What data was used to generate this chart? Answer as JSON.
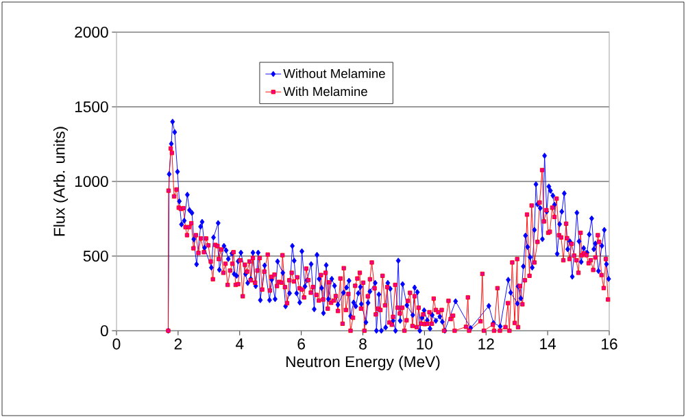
{
  "chart_data": {
    "type": "line",
    "xlabel": "Neutron Energy (MeV)",
    "ylabel": "Flux (Arb. units)",
    "xlim": [
      0,
      16
    ],
    "ylim": [
      0,
      2000
    ],
    "xticks": [
      0,
      2,
      4,
      6,
      8,
      10,
      12,
      14,
      16
    ],
    "yticks": [
      0,
      500,
      1000,
      1500,
      2000
    ],
    "grid": "y",
    "legend": "top",
    "line_style": "solid",
    "series": [
      {
        "name": "Without Melamine",
        "color": "#0000ff",
        "marker": "diamond",
        "x": [
          1.68,
          1.71,
          1.78,
          1.82,
          1.89,
          1.98,
          2.04,
          2.11,
          2.2,
          2.3,
          2.37,
          2.45,
          2.51,
          2.6,
          2.73,
          2.78,
          2.86,
          3.08,
          3.15,
          3.3,
          3.34,
          3.49,
          3.56,
          3.63,
          3.75,
          3.82,
          3.9,
          3.95,
          4.04,
          4.19,
          4.26,
          4.36,
          4.43,
          4.52,
          4.6,
          4.67,
          4.81,
          4.97,
          5.04,
          5.15,
          5.23,
          5.4,
          5.49,
          5.62,
          5.71,
          5.77,
          5.85,
          5.95,
          6.02,
          6.12,
          6.19,
          6.32,
          6.42,
          6.51,
          6.58,
          6.66,
          6.72,
          6.81,
          6.88,
          6.99,
          7.08,
          7.19,
          7.37,
          7.47,
          7.55,
          7.6,
          7.7,
          7.77,
          7.85,
          7.92,
          7.95,
          8.1,
          8.17,
          8.23,
          8.4,
          8.44,
          8.52,
          8.6,
          8.74,
          8.81,
          8.89,
          8.98,
          9.06,
          9.15,
          9.21,
          9.29,
          9.43,
          9.62,
          9.68,
          9.77,
          9.85,
          9.92,
          9.99,
          10.09,
          10.18,
          10.25,
          10.37,
          10.5,
          10.58,
          10.66,
          11.01,
          11.5,
          12.09,
          12.24,
          12.46,
          12.72,
          12.8,
          13.02,
          13.04,
          13.13,
          13.21,
          13.28,
          13.35,
          13.43,
          13.5,
          13.57,
          13.62,
          13.67,
          13.76,
          13.83,
          13.9,
          13.97,
          14.04,
          14.09,
          14.17,
          14.22,
          14.31,
          14.39,
          14.46,
          14.54,
          14.65,
          14.72,
          14.8,
          14.95,
          15.02,
          15.09,
          15.17,
          15.28,
          15.35,
          15.43,
          15.5,
          15.55,
          15.65,
          15.76,
          15.84,
          15.91,
          15.98
        ],
        "values": [
          0,
          1049,
          1252,
          1400,
          1330,
          1065,
          867,
          712,
          737,
          911,
          808,
          789,
          613,
          445,
          697,
          729,
          556,
          423,
          625,
          721,
          408,
          568,
          538,
          481,
          518,
          380,
          368,
          465,
          523,
          380,
          320,
          347,
          523,
          299,
          523,
          205,
          437,
          205,
          342,
          212,
          464,
          388,
          164,
          251,
          568,
          469,
          251,
          189,
          532,
          297,
          338,
          446,
          144,
          508,
          347,
          286,
          118,
          439,
          212,
          347,
          301,
          174,
          255,
          289,
          335,
          98,
          189,
          164,
          251,
          293,
          179,
          56,
          187,
          263,
          320,
          0,
          243,
          0,
          22,
          320,
          281,
          67,
          0,
          469,
          67,
          312,
          171,
          105,
          289,
          258,
          0,
          87,
          136,
          70,
          14,
          105,
          67,
          95,
          60,
          0,
          197,
          18,
          166,
          52,
          29,
          341,
          255,
          182,
          297,
          217,
          431,
          637,
          561,
          492,
          423,
          675,
          981,
          847,
          821,
          614,
          1172,
          798,
          966,
          938,
          905,
          844,
          515,
          714,
          798,
          920,
          546,
          599,
          362,
          790,
          599,
          461,
          553,
          523,
          645,
          752,
          546,
          584,
          400,
          569,
          675,
          446,
          347
        ]
      },
      {
        "name": "With Melamine",
        "color": "#ff0000",
        "marker": "square",
        "x": [
          1.68,
          1.69,
          1.76,
          1.8,
          1.87,
          1.95,
          2.02,
          2.09,
          2.17,
          2.24,
          2.29,
          2.35,
          2.43,
          2.5,
          2.58,
          2.66,
          2.74,
          2.84,
          2.91,
          2.98,
          3.06,
          3.13,
          3.21,
          3.28,
          3.32,
          3.4,
          3.47,
          3.54,
          3.61,
          3.69,
          3.76,
          3.8,
          3.87,
          3.95,
          4.02,
          4.1,
          4.17,
          4.24,
          4.32,
          4.36,
          4.43,
          4.5,
          4.58,
          4.65,
          4.73,
          4.8,
          4.91,
          4.98,
          5.04,
          5.13,
          5.21,
          5.28,
          5.36,
          5.39,
          5.47,
          5.54,
          5.61,
          5.69,
          5.76,
          5.87,
          5.94,
          6.02,
          6.09,
          6.16,
          6.23,
          6.31,
          6.38,
          6.49,
          6.57,
          6.64,
          6.71,
          6.79,
          6.86,
          6.9,
          6.97,
          7.05,
          7.12,
          7.19,
          7.27,
          7.34,
          7.38,
          7.45,
          7.53,
          7.6,
          7.68,
          7.75,
          7.82,
          7.9,
          7.94,
          8.01,
          8.05,
          8.16,
          8.23,
          8.29,
          8.38,
          8.42,
          8.49,
          8.57,
          8.64,
          8.72,
          8.79,
          8.86,
          8.94,
          8.98,
          9.05,
          9.13,
          9.2,
          9.28,
          9.35,
          9.42,
          9.46,
          9.53,
          9.61,
          9.68,
          9.75,
          9.81,
          9.89,
          9.96,
          10.01,
          10.09,
          10.16,
          10.24,
          10.3,
          10.37,
          10.45,
          10.56,
          10.64,
          10.78,
          10.85,
          10.93,
          10.98,
          11.35,
          11.41,
          11.45,
          11.82,
          11.88,
          11.93,
          12.22,
          12.26,
          12.37,
          12.45,
          12.63,
          12.71,
          12.76,
          12.85,
          12.93,
          13.01,
          13.04,
          13.1,
          13.18,
          13.26,
          13.33,
          13.41,
          13.48,
          13.57,
          13.67,
          13.74,
          13.82,
          13.88,
          13.96,
          14.02,
          14.07,
          14.15,
          14.22,
          14.29,
          14.37,
          14.44,
          14.51,
          14.6,
          14.63,
          14.71,
          14.78,
          14.86,
          14.93,
          15.0,
          15.07,
          15.11,
          15.18,
          15.26,
          15.33,
          15.4,
          15.48,
          15.55,
          15.63,
          15.67,
          15.75,
          15.82,
          15.89,
          15.96
        ],
        "values": [
          0,
          938,
          1221,
          1191,
          900,
          946,
          824,
          816,
          821,
          694,
          640,
          694,
          720,
          552,
          640,
          521,
          618,
          526,
          618,
          572,
          464,
          345,
          575,
          567,
          480,
          544,
          388,
          449,
          307,
          403,
          449,
          526,
          307,
          312,
          472,
          231,
          442,
          396,
          464,
          338,
          487,
          322,
          403,
          487,
          276,
          396,
          510,
          269,
          361,
          376,
          299,
          327,
          322,
          506,
          292,
          185,
          338,
          388,
          330,
          358,
          284,
          276,
          223,
          416,
          339,
          255,
          293,
          240,
          202,
          373,
          209,
          388,
          148,
          324,
          187,
          202,
          232,
          132,
          350,
          47,
          419,
          139,
          246,
          0,
          87,
          301,
          350,
          388,
          148,
          322,
          0,
          231,
          345,
          457,
          284,
          109,
          148,
          139,
          368,
          170,
          292,
          55,
          40,
          93,
          307,
          154,
          116,
          154,
          0,
          70,
          200,
          254,
          32,
          231,
          24,
          154,
          47,
          109,
          44,
          47,
          124,
          47,
          215,
          139,
          124,
          139,
          0,
          200,
          78,
          101,
          0,
          26,
          223,
          0,
          63,
          381,
          0,
          40,
          0,
          285,
          0,
          24,
          185,
          0,
          457,
          52,
          480,
          24,
          300,
          177,
          338,
          778,
          368,
          839,
          457,
          595,
          859,
          1076,
          732,
          808,
          656,
          663,
          824,
          762,
          885,
          640,
          625,
          472,
          717,
          620,
          480,
          582,
          503,
          472,
          388,
          656,
          506,
          518,
          506,
          452,
          472,
          407,
          491,
          640,
          595,
          373,
          286,
          480,
          209
        ]
      }
    ]
  }
}
